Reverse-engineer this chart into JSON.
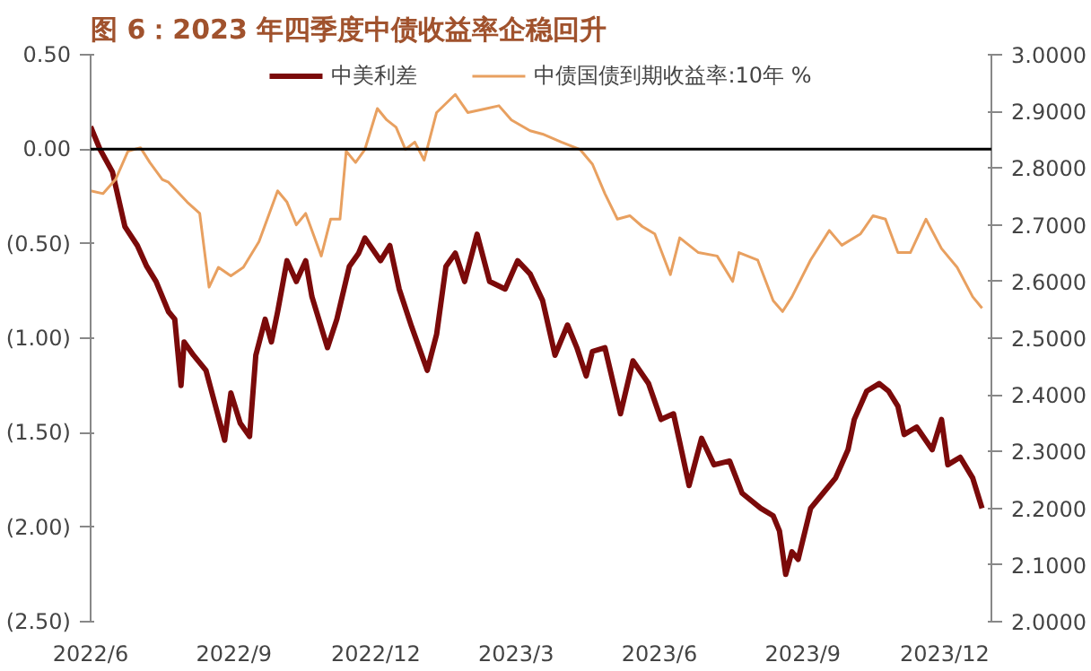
{
  "chart_data": {
    "type": "line",
    "title": "图 6：2023 年四季度中债收益率企稳回升",
    "xlim": [
      "2022-06-01",
      "2023-12-31"
    ],
    "xticks": [
      {
        "value": "2022-06-01",
        "label": "2022/6"
      },
      {
        "value": "2022-09-01",
        "label": "2022/9"
      },
      {
        "value": "2022-12-01",
        "label": "2022/12"
      },
      {
        "value": "2023-03-01",
        "label": "2023/3"
      },
      {
        "value": "2023-06-01",
        "label": "2023/6"
      },
      {
        "value": "2023-09-01",
        "label": "2023/9"
      },
      {
        "value": "2023-12-01",
        "label": "2023/12"
      }
    ],
    "ylim": [
      -2.5,
      0.5
    ],
    "yticks": [
      {
        "value": 0.5,
        "label": "0.50"
      },
      {
        "value": 0,
        "label": "0.00"
      },
      {
        "value": -0.5,
        "label": "(0.50)"
      },
      {
        "value": -1,
        "label": "(1.00)"
      },
      {
        "value": -1.5,
        "label": "(1.50)"
      },
      {
        "value": -2,
        "label": "(2.00)"
      },
      {
        "value": -2.5,
        "label": "(2.50)"
      }
    ],
    "y2lim": [
      2.0,
      3.0
    ],
    "y2ticks": [
      {
        "value": 2.0,
        "label": "2.0000"
      },
      {
        "value": 2.1,
        "label": "2.1000"
      },
      {
        "value": 2.2,
        "label": "2.2000"
      },
      {
        "value": 2.3,
        "label": "2.3000"
      },
      {
        "value": 2.4,
        "label": "2.4000"
      },
      {
        "value": 2.5,
        "label": "2.5000"
      },
      {
        "value": 2.6,
        "label": "2.6000"
      },
      {
        "value": 2.7,
        "label": "2.7000"
      },
      {
        "value": 2.8,
        "label": "2.8000"
      },
      {
        "value": 2.9,
        "label": "2.9000"
      },
      {
        "value": 3.0,
        "label": "3.0000"
      }
    ],
    "legend": "top",
    "grid": false,
    "ref_lines": [
      {
        "axis": "y",
        "value": 0,
        "color": "#000000"
      }
    ],
    "series": [
      {
        "name": "中美利差",
        "color": "#7b0a0a",
        "x": [
          "2022-06-01",
          "2022-06-07",
          "2022-06-15",
          "2022-06-23",
          "2022-07-01",
          "2022-07-07",
          "2022-07-13",
          "2022-07-21",
          "2022-07-25",
          "2022-07-29",
          "2022-07-31",
          "2022-08-06",
          "2022-08-14",
          "2022-08-26",
          "2022-08-30",
          "2022-09-05",
          "2022-09-11",
          "2022-09-15",
          "2022-09-21",
          "2022-09-25",
          "2022-09-29",
          "2022-10-05",
          "2022-10-11",
          "2022-10-17",
          "2022-10-21",
          "2022-10-31",
          "2022-11-06",
          "2022-11-14",
          "2022-11-20",
          "2022-11-24",
          "2022-12-04",
          "2022-12-10",
          "2022-12-16",
          "2022-12-24",
          "2023-01-03",
          "2023-01-09",
          "2023-01-15",
          "2023-01-21",
          "2023-01-27",
          "2023-02-04",
          "2023-02-12",
          "2023-02-22",
          "2023-03-02",
          "2023-03-10",
          "2023-03-18",
          "2023-03-26",
          "2023-04-03",
          "2023-04-09",
          "2023-04-15",
          "2023-04-19",
          "2023-04-27",
          "2023-05-07",
          "2023-05-15",
          "2023-05-25",
          "2023-06-02",
          "2023-06-10",
          "2023-06-14",
          "2023-06-20",
          "2023-06-28",
          "2023-07-06",
          "2023-07-16",
          "2023-07-24",
          "2023-08-05",
          "2023-08-13",
          "2023-08-17",
          "2023-08-21",
          "2023-08-25",
          "2023-08-29",
          "2023-09-06",
          "2023-09-14",
          "2023-09-22",
          "2023-09-30",
          "2023-10-04",
          "2023-10-12",
          "2023-10-20",
          "2023-10-26",
          "2023-11-01",
          "2023-11-05",
          "2023-11-13",
          "2023-11-23",
          "2023-11-29",
          "2023-12-03",
          "2023-12-11",
          "2023-12-19",
          "2023-12-25"
        ],
        "values": [
          0.12,
          0,
          -0.12,
          -0.41,
          -0.51,
          -0.62,
          -0.7,
          -0.86,
          -0.9,
          -1.25,
          -1.02,
          -1.09,
          -1.17,
          -1.54,
          -1.29,
          -1.45,
          -1.52,
          -1.09,
          -0.9,
          -1.02,
          -0.86,
          -0.59,
          -0.7,
          -0.59,
          -0.78,
          -1.05,
          -0.9,
          -0.62,
          -0.55,
          -0.47,
          -0.59,
          -0.51,
          -0.74,
          -0.94,
          -1.17,
          -0.98,
          -0.62,
          -0.55,
          -0.7,
          -0.45,
          -0.7,
          -0.74,
          -0.59,
          -0.66,
          -0.8,
          -1.09,
          -0.93,
          -1.05,
          -1.2,
          -1.07,
          -1.05,
          -1.4,
          -1.12,
          -1.24,
          -1.43,
          -1.4,
          -1.55,
          -1.78,
          -1.53,
          -1.67,
          -1.65,
          -1.82,
          -1.9,
          -1.94,
          -2.02,
          -2.25,
          -2.13,
          -2.17,
          -1.9,
          -1.82,
          -1.74,
          -1.59,
          -1.43,
          -1.28,
          -1.24,
          -1.28,
          -1.36,
          -1.51,
          -1.47,
          -1.59,
          -1.43,
          -1.67,
          -1.63,
          -1.74,
          -1.9
        ]
      },
      {
        "name": "中债国债到期收益率:10年 %",
        "color": "#e8a060",
        "axis": "y2",
        "x": [
          "2022-06-01",
          "2022-06-09",
          "2022-06-17",
          "2022-06-25",
          "2022-07-03",
          "2022-07-09",
          "2022-07-17",
          "2022-07-21",
          "2022-08-02",
          "2022-08-10",
          "2022-08-16",
          "2022-08-22",
          "2022-08-30",
          "2022-09-07",
          "2022-09-17",
          "2022-09-29",
          "2022-10-05",
          "2022-10-11",
          "2022-10-17",
          "2022-10-27",
          "2022-11-02",
          "2022-11-08",
          "2022-11-12",
          "2022-11-18",
          "2022-11-24",
          "2022-12-02",
          "2022-12-08",
          "2022-12-14",
          "2022-12-20",
          "2022-12-26",
          "2023-01-01",
          "2023-01-09",
          "2023-01-21",
          "2023-01-29",
          "2023-02-10",
          "2023-02-18",
          "2023-02-26",
          "2023-03-10",
          "2023-03-18",
          "2023-03-30",
          "2023-04-11",
          "2023-04-19",
          "2023-04-27",
          "2023-05-05",
          "2023-05-13",
          "2023-05-21",
          "2023-05-29",
          "2023-06-08",
          "2023-06-14",
          "2023-06-26",
          "2023-07-08",
          "2023-07-18",
          "2023-07-22",
          "2023-08-03",
          "2023-08-13",
          "2023-08-19",
          "2023-08-25",
          "2023-09-06",
          "2023-09-18",
          "2023-09-26",
          "2023-10-08",
          "2023-10-16",
          "2023-10-24",
          "2023-11-01",
          "2023-11-09",
          "2023-11-19",
          "2023-11-29",
          "2023-12-09",
          "2023-12-19",
          "2023-12-25"
        ],
        "values": [
          2.76,
          2.755,
          2.78,
          2.83,
          2.836,
          2.81,
          2.78,
          2.775,
          2.74,
          2.72,
          2.59,
          2.625,
          2.61,
          2.625,
          2.67,
          2.76,
          2.74,
          2.7,
          2.72,
          2.645,
          2.71,
          2.71,
          2.83,
          2.81,
          2.833,
          2.905,
          2.885,
          2.872,
          2.833,
          2.846,
          2.814,
          2.898,
          2.93,
          2.898,
          2.905,
          2.91,
          2.885,
          2.866,
          2.86,
          2.846,
          2.833,
          2.807,
          2.755,
          2.71,
          2.716,
          2.697,
          2.684,
          2.612,
          2.677,
          2.651,
          2.645,
          2.6,
          2.651,
          2.638,
          2.566,
          2.547,
          2.573,
          2.638,
          2.69,
          2.664,
          2.684,
          2.716,
          2.71,
          2.651,
          2.651,
          2.71,
          2.658,
          2.625,
          2.573,
          2.553
        ]
      }
    ]
  }
}
